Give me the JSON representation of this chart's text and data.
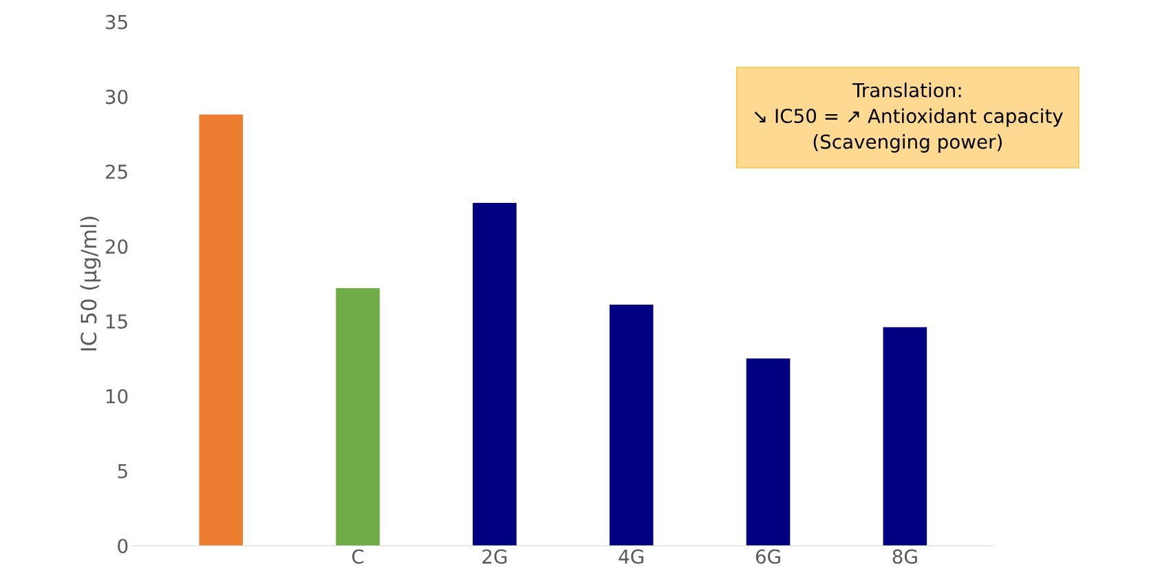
{
  "chart_data": {
    "type": "bar",
    "ylabel": "IC 50 (µg/ml)",
    "categories": [
      null,
      "C",
      "2G",
      "4G",
      "6G",
      "8G"
    ],
    "values": [
      28.8,
      17.2,
      22.9,
      16.1,
      12.5,
      14.6
    ],
    "colors": [
      "#ed7d31",
      "#70ad47",
      "#000080",
      "#000080",
      "#000080",
      "#000080"
    ],
    "ylim": [
      0,
      35
    ],
    "yticks": [
      0,
      5,
      10,
      15,
      20,
      25,
      30,
      35
    ],
    "grid": false,
    "legend": false,
    "annotations": [
      "Translation:\n↘ IC50 = ↗ Antioxidant capacity\n(Scavenging power)"
    ]
  }
}
